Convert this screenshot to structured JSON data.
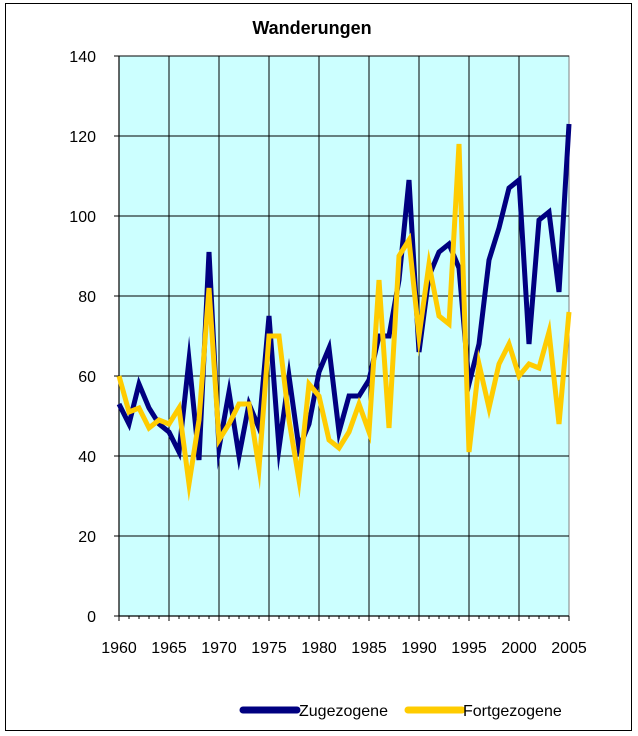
{
  "chart_data": {
    "type": "line",
    "title": "Wanderungen",
    "xlabel": "",
    "ylabel": "",
    "xlim": [
      1960,
      2005
    ],
    "ylim": [
      0,
      140
    ],
    "x_ticks": [
      "1960",
      "1965",
      "1970",
      "1975",
      "1980",
      "1985",
      "1990",
      "1995",
      "2000",
      "2005"
    ],
    "y_ticks": [
      "0",
      "20",
      "40",
      "60",
      "80",
      "100",
      "120",
      "140"
    ],
    "grid": true,
    "plot_background": "#ccffff",
    "legend_position": "bottom",
    "x": [
      1960,
      1961,
      1962,
      1963,
      1964,
      1965,
      1966,
      1967,
      1968,
      1969,
      1970,
      1971,
      1972,
      1973,
      1974,
      1975,
      1976,
      1977,
      1978,
      1979,
      1980,
      1981,
      1982,
      1983,
      1984,
      1985,
      1986,
      1987,
      1988,
      1989,
      1990,
      1991,
      1992,
      1993,
      1994,
      1995,
      1996,
      1997,
      1998,
      1999,
      2000,
      2001,
      2002,
      2003,
      2004,
      2005
    ],
    "series": [
      {
        "name": "Zugezogene",
        "color": "#000080",
        "values": [
          53,
          48,
          58,
          52,
          48,
          46,
          41,
          64,
          39,
          91,
          42,
          56,
          40,
          53,
          47,
          75,
          42,
          60,
          42,
          48,
          61,
          67,
          46,
          55,
          55,
          59,
          70,
          70,
          84,
          109,
          66,
          85,
          91,
          93,
          87,
          58,
          68,
          89,
          97,
          107,
          109,
          68,
          99,
          101,
          81,
          123
        ]
      },
      {
        "name": "Fortgezogene",
        "color": "#ffcc00",
        "values": [
          60,
          51,
          52,
          47,
          49,
          48,
          52,
          33,
          49,
          82,
          44,
          48,
          53,
          53,
          37,
          70,
          70,
          49,
          34,
          58,
          55,
          44,
          42,
          46,
          53,
          46,
          84,
          47,
          90,
          94,
          70,
          88,
          75,
          73,
          118,
          41,
          63,
          52,
          63,
          68,
          60,
          63,
          62,
          71,
          48,
          76
        ]
      }
    ]
  }
}
